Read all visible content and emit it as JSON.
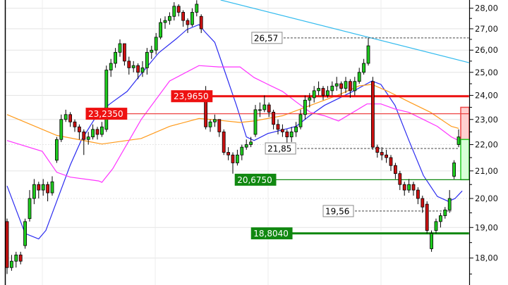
{
  "chart_data": {
    "type": "candlestick",
    "title": "",
    "y_scale": "log",
    "ylim": [
      17.3,
      28.4
    ],
    "grid": true,
    "colors": {
      "up": "#1ecb1e",
      "down": "#cc1111",
      "wick": "#000000",
      "ma_fast": "#2b2bf0",
      "ma_mid": "#ff9a1a",
      "ma_slow": "#ff33ff",
      "trendline": "#33bbee",
      "resistance": "#ee1111",
      "support": "#118811"
    },
    "y_ticks": [
      {
        "value": 28,
        "label": "28,00"
      },
      {
        "value": 27,
        "label": "27,00"
      },
      {
        "value": 26,
        "label": "26,00"
      },
      {
        "value": 25,
        "label": "25,00"
      },
      {
        "value": 24,
        "label": "24,00"
      },
      {
        "value": 23,
        "label": "23,00"
      },
      {
        "value": 22,
        "label": "22,00"
      },
      {
        "value": 21,
        "label": "21,00"
      },
      {
        "value": 20,
        "label": "20,00"
      },
      {
        "value": 19,
        "label": "19,00"
      },
      {
        "value": 18,
        "label": "18,00"
      }
    ],
    "ohlc": [
      [
        19.2,
        19.3,
        17.5,
        17.7
      ],
      [
        17.7,
        18.1,
        17.6,
        17.9
      ],
      [
        17.9,
        18.2,
        17.7,
        18.1
      ],
      [
        18.1,
        18.2,
        17.8,
        17.9
      ],
      [
        18.4,
        19.3,
        18.3,
        19.2
      ],
      [
        19.3,
        20.3,
        19.2,
        20.0
      ],
      [
        20.0,
        20.7,
        19.8,
        20.5
      ],
      [
        20.5,
        20.6,
        20.0,
        20.3
      ],
      [
        20.3,
        20.7,
        20.1,
        20.5
      ],
      [
        20.5,
        20.6,
        19.9,
        20.2
      ],
      [
        20.2,
        20.8,
        20.1,
        20.6
      ],
      [
        21.4,
        22.3,
        21.3,
        22.2
      ],
      [
        22.2,
        23.2,
        22.1,
        23.0
      ],
      [
        23.0,
        23.4,
        22.9,
        23.2
      ],
      [
        23.2,
        23.3,
        22.7,
        22.9
      ],
      [
        22.9,
        23.0,
        22.5,
        22.7
      ],
      [
        22.7,
        22.8,
        22.2,
        22.5
      ],
      [
        22.5,
        22.6,
        21.6,
        22.2
      ],
      [
        22.2,
        22.5,
        22.0,
        22.3
      ],
      [
        22.3,
        22.8,
        22.2,
        22.6
      ],
      [
        22.6,
        22.7,
        22.2,
        22.4
      ],
      [
        22.4,
        22.9,
        22.3,
        22.7
      ],
      [
        22.6,
        25.3,
        22.5,
        25.1
      ],
      [
        25.1,
        25.6,
        24.8,
        25.4
      ],
      [
        25.4,
        26.1,
        25.2,
        25.9
      ],
      [
        25.9,
        26.5,
        25.7,
        26.3
      ],
      [
        26.3,
        26.3,
        25.3,
        25.5
      ],
      [
        25.5,
        25.7,
        24.9,
        25.2
      ],
      [
        25.2,
        25.5,
        25.0,
        25.3
      ],
      [
        25.3,
        25.4,
        24.7,
        25.0
      ],
      [
        25.0,
        25.5,
        24.8,
        25.2
      ],
      [
        25.2,
        26.1,
        24.9,
        25.9
      ],
      [
        25.9,
        26.2,
        25.6,
        26.0
      ],
      [
        26.0,
        26.8,
        25.8,
        26.6
      ],
      [
        26.6,
        27.5,
        26.5,
        27.3
      ],
      [
        27.3,
        27.6,
        27.0,
        27.4
      ],
      [
        27.4,
        27.8,
        27.2,
        27.6
      ],
      [
        27.6,
        28.3,
        27.4,
        28.1
      ],
      [
        28.1,
        28.2,
        27.6,
        27.8
      ],
      [
        27.8,
        27.9,
        27.1,
        27.4
      ],
      [
        27.4,
        27.5,
        26.8,
        27.2
      ],
      [
        27.2,
        28.0,
        27.1,
        27.8
      ],
      [
        27.8,
        28.4,
        27.6,
        28.2
      ],
      [
        27.6,
        27.7,
        26.8,
        27.0
      ],
      [
        24.0,
        24.4,
        22.6,
        22.7
      ],
      [
        22.7,
        23.0,
        22.5,
        22.9
      ],
      [
        22.9,
        23.2,
        22.7,
        23.0
      ],
      [
        23.0,
        23.0,
        22.3,
        22.5
      ],
      [
        22.5,
        22.6,
        21.6,
        21.7
      ],
      [
        21.7,
        21.9,
        21.4,
        21.6
      ],
      [
        21.6,
        21.7,
        20.9,
        21.3
      ],
      [
        21.3,
        21.8,
        21.2,
        21.6
      ],
      [
        21.6,
        22.0,
        21.4,
        21.9
      ],
      [
        21.9,
        22.2,
        21.8,
        22.0
      ],
      [
        22.0,
        22.3,
        21.9,
        22.1
      ],
      [
        22.4,
        23.6,
        22.3,
        23.4
      ],
      [
        23.4,
        23.7,
        23.1,
        23.4
      ],
      [
        23.4,
        24.0,
        23.3,
        23.6
      ],
      [
        23.6,
        23.7,
        23.1,
        23.3
      ],
      [
        23.3,
        23.4,
        22.6,
        22.8
      ],
      [
        22.8,
        23.0,
        22.4,
        22.6
      ],
      [
        22.6,
        22.8,
        22.3,
        22.5
      ],
      [
        22.5,
        22.6,
        22.0,
        22.3
      ],
      [
        22.3,
        22.7,
        22.1,
        22.5
      ],
      [
        22.5,
        22.9,
        22.3,
        22.7
      ],
      [
        22.7,
        23.4,
        22.6,
        23.2
      ],
      [
        23.2,
        24.0,
        23.0,
        23.8
      ],
      [
        23.8,
        24.1,
        23.5,
        23.9
      ],
      [
        23.9,
        24.4,
        23.7,
        24.2
      ],
      [
        24.2,
        24.6,
        24.0,
        24.3
      ],
      [
        24.3,
        24.4,
        23.8,
        24.0
      ],
      [
        24.0,
        24.4,
        23.9,
        24.2
      ],
      [
        24.2,
        24.6,
        24.0,
        24.4
      ],
      [
        24.4,
        24.8,
        24.2,
        24.5
      ],
      [
        24.5,
        24.6,
        24.0,
        24.3
      ],
      [
        24.3,
        24.8,
        24.1,
        24.6
      ],
      [
        24.6,
        24.7,
        23.9,
        24.2
      ],
      [
        24.2,
        24.8,
        24.0,
        24.6
      ],
      [
        24.6,
        25.2,
        24.5,
        25.0
      ],
      [
        25.0,
        25.6,
        24.9,
        25.4
      ],
      [
        25.4,
        26.57,
        25.3,
        26.2
      ],
      [
        24.6,
        24.8,
        21.8,
        21.9
      ],
      [
        21.9,
        22.0,
        21.5,
        21.7
      ],
      [
        21.7,
        21.9,
        21.4,
        21.6
      ],
      [
        21.6,
        21.8,
        21.3,
        21.5
      ],
      [
        21.5,
        21.6,
        21.0,
        21.2
      ],
      [
        21.2,
        21.3,
        20.7,
        20.9
      ],
      [
        20.9,
        21.0,
        20.3,
        20.5
      ],
      [
        20.5,
        20.6,
        20.1,
        20.3
      ],
      [
        20.3,
        20.7,
        20.2,
        20.5
      ],
      [
        20.5,
        20.6,
        20.1,
        20.3
      ],
      [
        20.3,
        20.4,
        19.8,
        20.0
      ],
      [
        20.0,
        20.1,
        19.5,
        19.7
      ],
      [
        19.8,
        19.9,
        18.8,
        18.9
      ],
      [
        18.3,
        18.9,
        18.2,
        18.8
      ],
      [
        18.9,
        19.3,
        18.8,
        19.2
      ],
      [
        19.2,
        19.5,
        19.0,
        19.4
      ],
      [
        19.4,
        19.7,
        19.3,
        19.6
      ],
      [
        19.6,
        20.3,
        19.5,
        20.0
      ],
      [
        20.8,
        21.4,
        20.7,
        21.3
      ],
      [
        22.0,
        22.6,
        21.9,
        22.3
      ]
    ],
    "moving_averages": [
      {
        "color": "#2b2bf0",
        "points": [
          [
            0,
            20.45
          ],
          [
            4,
            18.8
          ],
          [
            7,
            18.62
          ],
          [
            8.6,
            18.9
          ],
          [
            11,
            19.9
          ],
          [
            14,
            21.22
          ],
          [
            16.4,
            22.16
          ],
          [
            20.3,
            23.29
          ],
          [
            23.4,
            23.73
          ],
          [
            26.6,
            24.17
          ],
          [
            29.7,
            24.93
          ],
          [
            33.6,
            25.88
          ],
          [
            37.5,
            26.53
          ],
          [
            39.8,
            26.96
          ],
          [
            42.5,
            27.2
          ],
          [
            43.8,
            26.86
          ],
          [
            46,
            26.36
          ],
          [
            48.4,
            24.93
          ],
          [
            50.8,
            23.58
          ],
          [
            53,
            22.3
          ],
          [
            54.7,
            22.16
          ],
          [
            57.8,
            22.44
          ],
          [
            61,
            22.58
          ],
          [
            64,
            22.72
          ],
          [
            67,
            23.15
          ],
          [
            70.3,
            23.58
          ],
          [
            73.4,
            23.87
          ],
          [
            76.6,
            24.17
          ],
          [
            80.8,
            24.62
          ],
          [
            82.8,
            24.47
          ],
          [
            85.9,
            23.58
          ],
          [
            89,
            22.16
          ],
          [
            92.2,
            20.83
          ],
          [
            95.3,
            20.07
          ],
          [
            97.7,
            19.9
          ],
          [
            99.2,
            20.0
          ],
          [
            100.8,
            20.27
          ]
        ]
      },
      {
        "color": "#ff9a1a",
        "points": [
          [
            0,
            23.2
          ],
          [
            11,
            22.36
          ],
          [
            21,
            22.02
          ],
          [
            29.7,
            22.24
          ],
          [
            36,
            22.72
          ],
          [
            42.5,
            23.04
          ],
          [
            45.3,
            23.0
          ],
          [
            51.6,
            22.88
          ],
          [
            54.7,
            22.94
          ],
          [
            61,
            23.15
          ],
          [
            67.2,
            23.58
          ],
          [
            73.4,
            24.02
          ],
          [
            78,
            24.41
          ],
          [
            80.8,
            24.47
          ],
          [
            84.4,
            24.17
          ],
          [
            89,
            23.73
          ],
          [
            93.8,
            23.29
          ],
          [
            98.4,
            22.72
          ],
          [
            100,
            22.64
          ]
        ]
      },
      {
        "color": "#ff33ff",
        "points": [
          [
            0,
            22.16
          ],
          [
            7.8,
            21.74
          ],
          [
            11,
            20.95
          ],
          [
            14,
            20.77
          ],
          [
            20.3,
            20.63
          ],
          [
            21,
            20.58
          ],
          [
            23.4,
            21.08
          ],
          [
            29.7,
            23.0
          ],
          [
            36,
            24.62
          ],
          [
            42.5,
            25.3
          ],
          [
            46.9,
            25.24
          ],
          [
            51.6,
            25.24
          ],
          [
            54.7,
            24.77
          ],
          [
            57.8,
            24.47
          ],
          [
            61,
            24.17
          ],
          [
            64,
            23.73
          ],
          [
            67.2,
            23.29
          ],
          [
            70.3,
            23.15
          ],
          [
            73.4,
            22.94
          ],
          [
            76.6,
            23.29
          ],
          [
            79.7,
            23.64
          ],
          [
            82.8,
            23.64
          ],
          [
            85.9,
            23.43
          ],
          [
            89,
            23.29
          ],
          [
            92.2,
            23.0
          ],
          [
            95.3,
            22.72
          ],
          [
            98.4,
            22.3
          ],
          [
            100,
            22.16
          ]
        ]
      }
    ],
    "trendline": {
      "color": "#33bbee",
      "from": [
        47.3,
        28.41
      ],
      "to": [
        102.3,
        25.43
      ]
    },
    "levels": [
      {
        "value": 26.57,
        "label": "26,57",
        "style": "dashed",
        "label_bar": 54.2,
        "end_bar": 102.3
      },
      {
        "value": 23.965,
        "label": "23,9650",
        "style": "red-thick",
        "label_bar": 36.4,
        "end_bar": 102.3
      },
      {
        "value": 23.235,
        "label": "23,2350",
        "style": "red-thin",
        "label_bar": 17.5,
        "end_bar": 102.3
      },
      {
        "value": 21.85,
        "label": "21,85",
        "style": "dashed",
        "label_bar": 57.2,
        "end_bar": 100
      },
      {
        "value": 20.675,
        "label": "20,6750",
        "style": "green-thin",
        "label_bar": 50.5,
        "end_bar": 102.3
      },
      {
        "value": 19.56,
        "label": "19,56",
        "style": "dashed",
        "label_bar": 70,
        "end_bar": 98.4
      },
      {
        "value": 18.804,
        "label": "18,8040",
        "style": "green-thick",
        "label_bar": 54.1,
        "end_bar": 102.3
      }
    ],
    "zones": [
      {
        "kind": "risk",
        "top": 23.5,
        "bottom": 22.2,
        "color": "#ffd0d0",
        "border": "#ee4444"
      },
      {
        "kind": "reward",
        "top": 22.2,
        "bottom": 20.675,
        "color": "#d8ffd8",
        "border": "#22cc22"
      }
    ]
  }
}
